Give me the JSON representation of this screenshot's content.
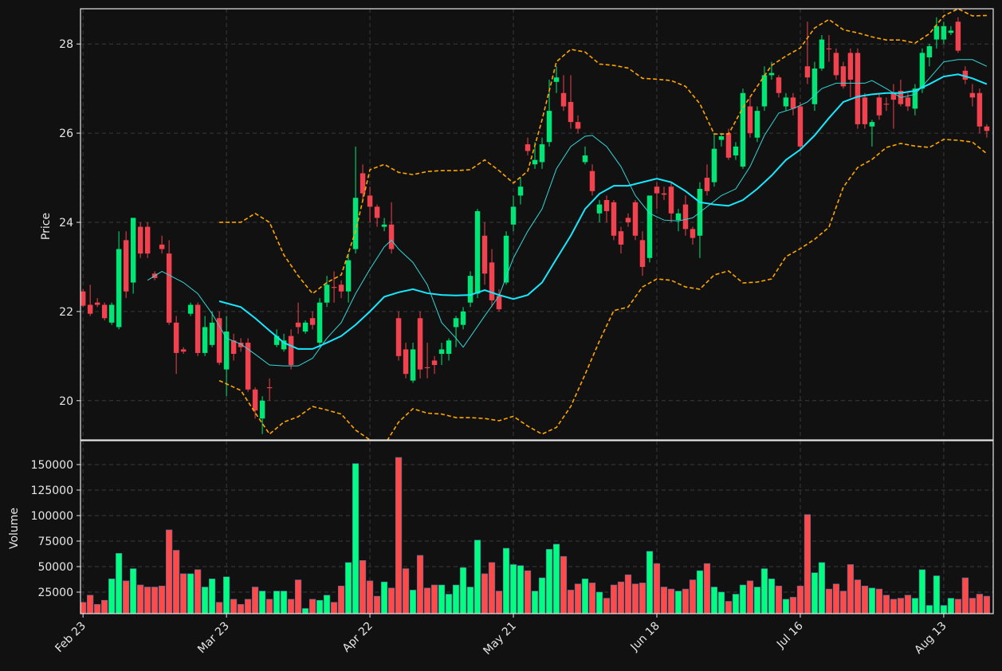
{
  "chart_data": [
    {
      "type": "candlestick",
      "ylabel": "Price",
      "xlim": [
        -0.35,
        126.9
      ],
      "ylim": [
        19.12,
        28.79
      ],
      "yticks": [
        20,
        22,
        24,
        26,
        28
      ],
      "grid": true,
      "up_color": "#00e676",
      "down_color": "#f0434f",
      "open": [
        22.45,
        22.15,
        22.2,
        22.15,
        21.75,
        21.65,
        23.6,
        22.65,
        23.9,
        23.9,
        22.85,
        23.5,
        23.3,
        21.75,
        21.15,
        21.95,
        22.15,
        21.07,
        21.25,
        21.85,
        20.7,
        21.35,
        21.3,
        21.3,
        20.25,
        19.6,
        20.3,
        21.25,
        21.15,
        21.45,
        21.75,
        21.55,
        21.85,
        21.3,
        22.2,
        22.55,
        22.6,
        22.45,
        23.4,
        25.1,
        24.6,
        24.35,
        23.9,
        23.95,
        21.85,
        21.15,
        20.45,
        21.85,
        20.75,
        20.9,
        21.05,
        21.05,
        21.65,
        21.7,
        22.2,
        22.4,
        23.7,
        23.1,
        22.35,
        22.65,
        23.95,
        24.6,
        25.75,
        25.3,
        25.35,
        25.8,
        27.15,
        26.9,
        26.7,
        26.25,
        25.35,
        25.15,
        24.2,
        24.5,
        24.45,
        23.8,
        24.1,
        24.45,
        23.6,
        23.2,
        24.8,
        24.65,
        24.8,
        24.05,
        24.4,
        23.85,
        23.7,
        25.0,
        24.9,
        25.85,
        26.0,
        25.5,
        25.25,
        26.6,
        25.9,
        26.6,
        27.3,
        27.25,
        26.6,
        26.8,
        26.6,
        27.5,
        26.65,
        27.45,
        27.9,
        27.8,
        27.5,
        27.8,
        27.8,
        26.8,
        26.15,
        26.8,
        26.66,
        26.9,
        26.95,
        26.8,
        26.55,
        27.0,
        27.7,
        28.1,
        28.1,
        28.25,
        28.5,
        27.4,
        26.9,
        26.9,
        26.15
      ],
      "high": [
        22.5,
        22.6,
        22.3,
        22.2,
        22.2,
        23.8,
        23.8,
        24.1,
        24.0,
        24.0,
        22.9,
        23.7,
        23.6,
        21.9,
        21.2,
        22.2,
        22.2,
        21.9,
        22.0,
        22.0,
        21.9,
        21.5,
        21.4,
        21.4,
        20.3,
        20.1,
        20.5,
        21.6,
        21.5,
        21.6,
        22.2,
        21.8,
        22.0,
        22.3,
        22.8,
        22.9,
        22.7,
        23.3,
        25.7,
        25.3,
        24.8,
        24.4,
        24.1,
        24.45,
        22.0,
        21.3,
        21.3,
        22.0,
        21.3,
        21.0,
        21.3,
        21.4,
        21.9,
        22.1,
        22.9,
        24.3,
        24.0,
        23.4,
        22.5,
        23.8,
        24.6,
        25.0,
        25.9,
        25.8,
        25.9,
        27.2,
        27.5,
        27.3,
        27.3,
        26.4,
        25.7,
        25.3,
        24.5,
        24.6,
        24.5,
        23.9,
        24.2,
        24.5,
        23.8,
        24.6,
        24.9,
        24.8,
        24.9,
        24.3,
        24.6,
        23.9,
        24.9,
        25.3,
        26.0,
        26.0,
        26.1,
        25.8,
        27.0,
        26.8,
        26.6,
        27.5,
        27.6,
        27.3,
        26.9,
        26.9,
        26.7,
        28.5,
        27.6,
        28.2,
        28.2,
        27.9,
        27.6,
        27.9,
        27.9,
        26.9,
        26.3,
        26.9,
        26.8,
        27.1,
        27.2,
        26.9,
        27.1,
        27.9,
        28.0,
        28.6,
        28.5,
        28.4,
        28.6,
        27.5,
        27.1,
        27.0,
        26.2
      ],
      "low": [
        22.1,
        21.9,
        22.1,
        21.8,
        21.7,
        21.6,
        22.3,
        22.4,
        23.2,
        23.2,
        22.7,
        23.3,
        21.7,
        20.6,
        21.05,
        21.9,
        21.0,
        21.0,
        21.2,
        20.8,
        20.1,
        20.9,
        21.1,
        20.2,
        19.6,
        19.25,
        20.0,
        21.2,
        21.1,
        20.7,
        21.5,
        21.5,
        21.6,
        21.2,
        22.1,
        22.2,
        22.3,
        22.2,
        23.3,
        24.5,
        24.0,
        23.9,
        23.8,
        23.3,
        20.9,
        20.5,
        20.4,
        20.5,
        20.5,
        20.6,
        20.8,
        20.9,
        21.2,
        21.6,
        22.1,
        22.3,
        22.6,
        22.1,
        22.0,
        22.6,
        23.8,
        24.4,
        25.5,
        25.2,
        25.2,
        25.7,
        26.9,
        26.5,
        26.1,
        26.0,
        25.3,
        24.6,
        24.0,
        24.0,
        23.6,
        23.3,
        23.9,
        23.6,
        22.8,
        23.1,
        24.3,
        24.5,
        24.0,
        23.8,
        23.7,
        23.5,
        23.2,
        24.6,
        24.8,
        25.7,
        25.4,
        25.4,
        25.2,
        25.9,
        25.8,
        26.5,
        27.2,
        26.8,
        26.5,
        26.4,
        25.6,
        27.1,
        26.5,
        27.4,
        27.6,
        27.2,
        27.0,
        26.8,
        26.1,
        26.1,
        25.7,
        26.3,
        26.5,
        26.1,
        26.6,
        26.5,
        26.4,
        26.9,
        27.5,
        27.9,
        28.0,
        28.2,
        27.8,
        27.1,
        26.6,
        26.0,
        25.9
      ],
      "close": [
        22.13,
        21.95,
        22.15,
        21.85,
        22.15,
        23.4,
        22.45,
        24.1,
        23.3,
        23.3,
        22.75,
        23.4,
        21.75,
        21.07,
        21.1,
        22.15,
        21.07,
        21.65,
        21.75,
        20.85,
        21.55,
        21.05,
        21.2,
        20.25,
        19.78,
        20.0,
        20.28,
        21.45,
        21.35,
        20.8,
        21.65,
        21.75,
        21.7,
        22.2,
        22.6,
        22.53,
        22.45,
        23.15,
        24.55,
        24.65,
        24.35,
        24.1,
        23.95,
        23.4,
        21.0,
        20.6,
        21.15,
        20.7,
        20.73,
        20.8,
        21.15,
        21.35,
        21.85,
        22.0,
        22.8,
        24.25,
        22.85,
        22.25,
        22.05,
        23.7,
        24.35,
        24.8,
        25.6,
        25.4,
        25.75,
        26.5,
        27.25,
        26.6,
        26.25,
        26.1,
        25.5,
        24.7,
        24.4,
        24.25,
        23.7,
        23.5,
        24.0,
        23.7,
        23.0,
        24.6,
        24.65,
        24.62,
        24.2,
        24.2,
        23.85,
        23.65,
        24.75,
        24.7,
        25.65,
        25.93,
        25.45,
        25.7,
        26.9,
        26.0,
        26.5,
        27.3,
        27.35,
        26.9,
        26.8,
        26.55,
        25.7,
        27.25,
        27.45,
        28.1,
        27.88,
        27.3,
        27.05,
        27.2,
        26.2,
        26.2,
        26.25,
        26.4,
        26.64,
        26.75,
        26.65,
        26.6,
        27.0,
        27.8,
        27.95,
        28.4,
        28.4,
        28.3,
        27.85,
        27.2,
        26.8,
        26.15,
        26.05
      ],
      "series": [
        {
          "color": "#33d6d6",
          "linewidth": 1,
          "linestyle": "solid",
          "x": [
            9,
            11,
            14,
            16,
            18,
            20,
            22,
            24,
            26,
            28,
            30,
            32,
            34,
            36,
            38,
            40,
            42,
            43,
            44,
            46,
            48,
            50,
            52,
            53,
            56,
            58,
            60,
            62,
            64,
            66,
            68,
            70,
            71,
            73,
            75,
            77,
            79,
            81,
            83,
            85,
            87,
            89,
            91,
            93,
            95,
            97,
            99,
            101,
            103,
            105,
            107,
            109,
            110,
            112,
            114,
            116,
            118,
            120,
            122,
            124,
            126
          ],
          "values": [
            22.7,
            22.9,
            22.65,
            22.4,
            21.95,
            21.4,
            21.27,
            21.04,
            20.8,
            20.78,
            20.78,
            20.95,
            21.4,
            21.75,
            22.4,
            22.95,
            23.45,
            23.6,
            23.4,
            23.1,
            22.6,
            21.75,
            21.4,
            21.2,
            21.9,
            22.35,
            23.2,
            23.8,
            24.3,
            25.2,
            25.7,
            25.93,
            25.95,
            25.7,
            25.25,
            24.6,
            24.2,
            24.05,
            24.03,
            24.1,
            24.35,
            24.6,
            24.75,
            25.25,
            25.95,
            26.45,
            26.55,
            26.7,
            27.0,
            27.12,
            27.12,
            27.12,
            27.18,
            27.0,
            26.8,
            26.87,
            27.23,
            27.6,
            27.65,
            27.65,
            27.5
          ]
        },
        {
          "color": "#18e8ff",
          "linewidth": 2,
          "linestyle": "solid",
          "x": [
            19,
            22,
            24,
            26,
            28,
            30,
            32,
            34,
            36,
            38,
            40,
            42,
            44,
            46,
            48,
            50,
            52,
            54,
            56,
            58,
            60,
            62,
            64,
            66,
            68,
            70,
            72,
            74,
            76,
            78,
            80,
            82,
            84,
            86,
            88,
            90,
            92,
            94,
            96,
            98,
            100,
            102,
            104,
            106,
            108,
            110,
            112,
            114,
            116,
            118,
            120,
            122,
            124,
            126
          ],
          "values": [
            22.23,
            22.1,
            21.85,
            21.57,
            21.3,
            21.16,
            21.16,
            21.3,
            21.45,
            21.7,
            22.0,
            22.33,
            22.43,
            22.5,
            22.41,
            22.37,
            22.36,
            22.37,
            22.48,
            22.37,
            22.28,
            22.37,
            22.65,
            23.18,
            23.7,
            24.3,
            24.64,
            24.82,
            24.82,
            24.9,
            24.98,
            24.9,
            24.7,
            24.45,
            24.4,
            24.37,
            24.5,
            24.75,
            25.05,
            25.4,
            25.63,
            25.95,
            26.34,
            26.7,
            26.82,
            26.87,
            26.9,
            26.9,
            26.95,
            27.1,
            27.27,
            27.32,
            27.23,
            27.1
          ]
        },
        {
          "color": "#ffa500",
          "linewidth": 1.6,
          "linestyle": "dashed",
          "x": [
            19,
            22,
            24,
            26,
            28,
            30,
            32,
            34,
            36,
            38,
            40,
            42,
            44,
            46,
            48,
            50,
            52,
            54,
            56,
            58,
            60,
            62,
            64,
            66,
            68,
            70,
            72,
            74,
            76,
            78,
            80,
            82,
            84,
            86,
            88,
            90,
            92,
            94,
            96,
            98,
            100,
            102,
            104,
            106,
            108,
            110,
            112,
            114,
            116,
            118,
            120,
            122,
            124,
            126
          ],
          "values": [
            24.0,
            24.0,
            24.2,
            24.0,
            23.27,
            22.8,
            22.4,
            22.65,
            22.82,
            23.8,
            25.18,
            25.3,
            25.12,
            25.07,
            25.14,
            25.16,
            25.16,
            25.18,
            25.4,
            25.16,
            24.88,
            25.15,
            26.3,
            27.6,
            27.88,
            27.82,
            27.55,
            27.52,
            27.46,
            27.23,
            27.21,
            27.18,
            27.05,
            26.66,
            25.98,
            25.98,
            26.57,
            27.05,
            27.52,
            27.73,
            27.91,
            28.36,
            28.55,
            28.32,
            28.25,
            28.16,
            28.09,
            28.09,
            28.02,
            28.23,
            28.63,
            28.79,
            28.63,
            28.64
          ]
        },
        {
          "color": "#ffa500",
          "linewidth": 1.6,
          "linestyle": "dashed",
          "x": [
            19,
            22,
            24,
            26,
            28,
            30,
            32,
            34,
            36,
            38,
            40,
            42,
            44,
            46,
            48,
            50,
            52,
            54,
            56,
            58,
            60,
            62,
            64,
            66,
            68,
            70,
            72,
            74,
            76,
            78,
            80,
            82,
            84,
            86,
            88,
            90,
            92,
            94,
            96,
            98,
            100,
            102,
            104,
            106,
            108,
            110,
            112,
            114,
            116,
            118,
            120,
            122,
            124,
            126
          ],
          "values": [
            20.45,
            20.23,
            19.73,
            19.25,
            19.52,
            19.64,
            19.87,
            19.79,
            19.7,
            19.34,
            19.12,
            19.0,
            19.52,
            19.82,
            19.72,
            19.7,
            19.62,
            19.62,
            19.6,
            19.55,
            19.65,
            19.43,
            19.25,
            19.4,
            19.87,
            20.59,
            21.34,
            22.02,
            22.1,
            22.55,
            22.73,
            22.7,
            22.55,
            22.5,
            22.82,
            22.91,
            22.64,
            22.66,
            22.73,
            23.23,
            23.41,
            23.62,
            23.89,
            24.79,
            25.23,
            25.41,
            25.68,
            25.77,
            25.71,
            25.68,
            25.86,
            25.84,
            25.8,
            25.54
          ]
        }
      ]
    },
    {
      "type": "bar",
      "ylabel": "Volume",
      "xlim": [
        -0.35,
        126.9
      ],
      "ylim": [
        3900,
        173400
      ],
      "yticks": [
        25000,
        50000,
        75000,
        100000,
        125000,
        150000
      ],
      "grid": true,
      "xticks": [
        {
          "value": 0,
          "label": "Feb 23"
        },
        {
          "value": 20,
          "label": "Mar 23"
        },
        {
          "value": 40,
          "label": "Apr 22"
        },
        {
          "value": 60,
          "label": "May 21"
        },
        {
          "value": 80,
          "label": "Jun 18"
        },
        {
          "value": 100,
          "label": "Jul 16"
        },
        {
          "value": 120,
          "label": "Aug 13"
        }
      ],
      "up_color": "#00ff80",
      "down_color": "#ff4a4a",
      "values": [
        15000,
        22000,
        13000,
        17000,
        38000,
        63000,
        36000,
        48000,
        32000,
        30000,
        30000,
        31000,
        86000,
        66000,
        43000,
        43000,
        47000,
        30000,
        38000,
        15000,
        40000,
        18000,
        13000,
        18000,
        30000,
        26000,
        18000,
        26000,
        26000,
        18000,
        37000,
        9000,
        18000,
        17000,
        22000,
        15000,
        31000,
        54000,
        151000,
        56000,
        36000,
        21000,
        35000,
        29000,
        157000,
        48000,
        27000,
        61000,
        29000,
        32000,
        32000,
        23000,
        32000,
        49000,
        30000,
        76000,
        43000,
        54000,
        26000,
        68000,
        52000,
        51000,
        46000,
        26000,
        39000,
        67000,
        72000,
        60000,
        27000,
        33000,
        38000,
        34000,
        25000,
        19000,
        32000,
        35000,
        42000,
        33000,
        34000,
        65000,
        53000,
        30000,
        28000,
        26000,
        28000,
        37000,
        46000,
        53000,
        30000,
        25000,
        16000,
        23000,
        32000,
        36000,
        30000,
        48000,
        38000,
        31000,
        18000,
        20000,
        31000,
        101000,
        44000,
        54000,
        28000,
        33000,
        26000,
        52000,
        37000,
        31000,
        29000,
        28000,
        22000,
        18000,
        19000,
        22000,
        19000,
        47000,
        12000,
        41000,
        12000,
        19000,
        18000,
        39000,
        19000,
        23000,
        21000
      ]
    }
  ]
}
